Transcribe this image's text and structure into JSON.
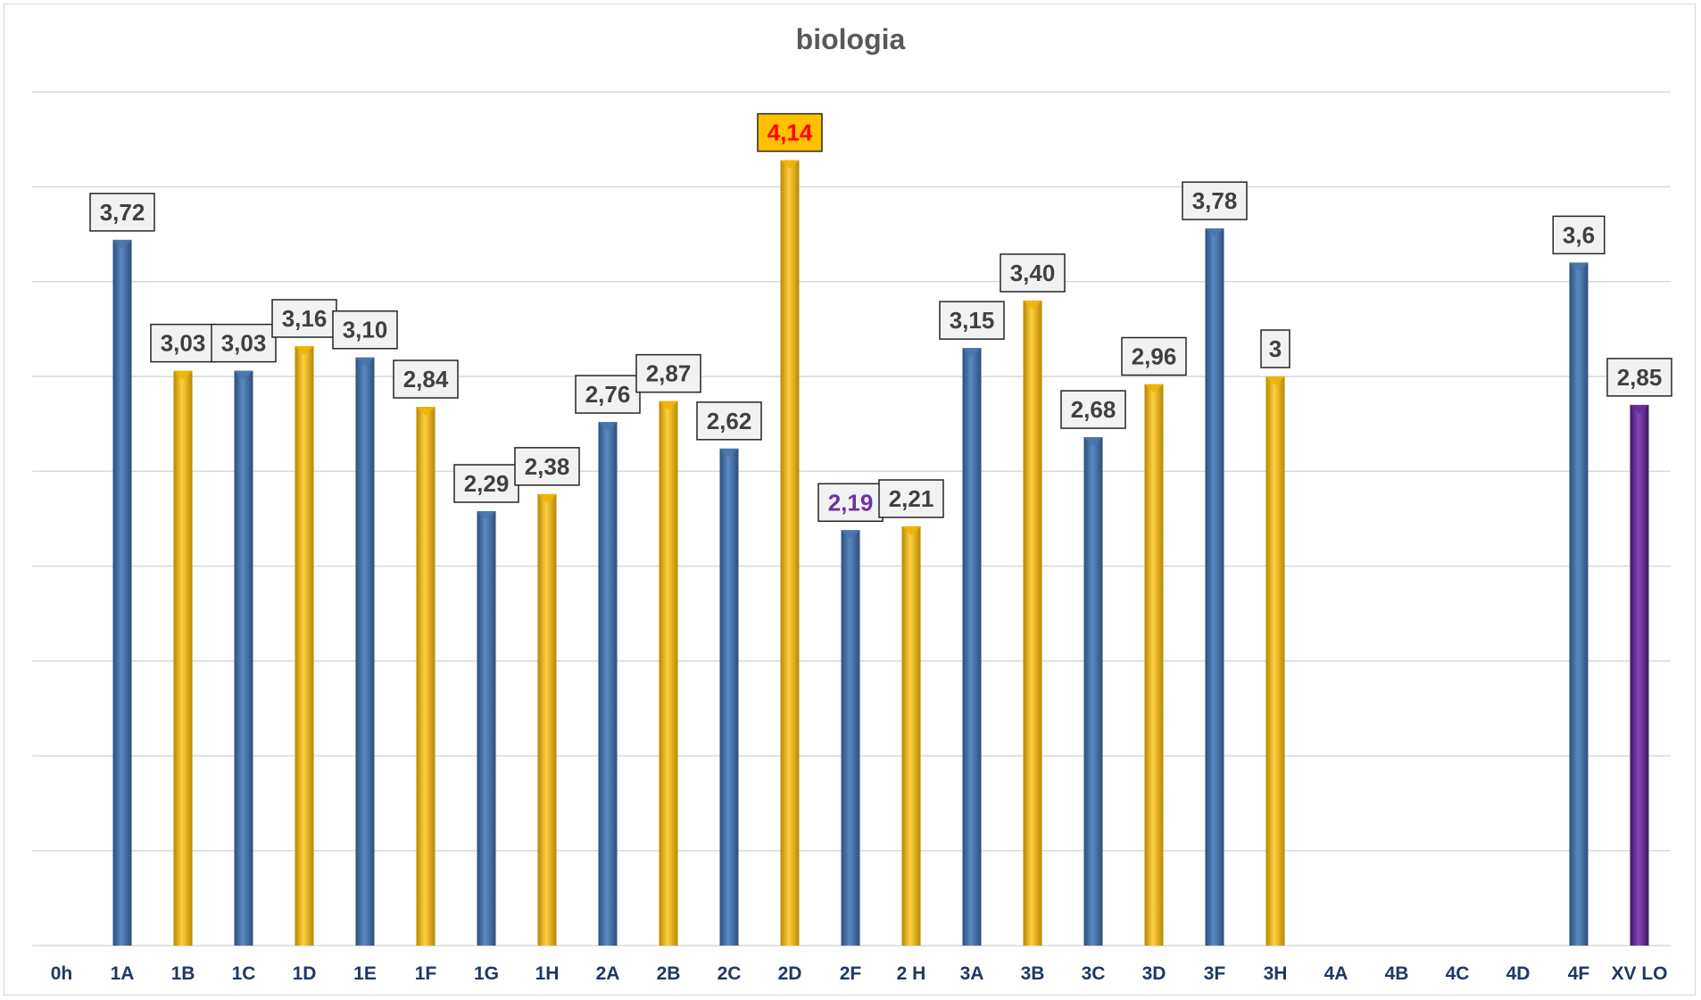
{
  "chart_data": {
    "type": "bar",
    "title": "biologia",
    "xlabel": "",
    "ylabel": "",
    "ylim": [
      0,
      4.5
    ],
    "grid": true,
    "legend": "none",
    "categories": [
      "0h",
      "1A",
      "1B",
      "1C",
      "1D",
      "1E",
      "1F",
      "1G",
      "1H",
      "2A",
      "2B",
      "2C",
      "2D",
      "2F",
      "2 H",
      "3A",
      "3B",
      "3C",
      "3D",
      "3F",
      "3H",
      "4A",
      "4B",
      "4C",
      "4D",
      "4F",
      "XV LO"
    ],
    "values": [
      null,
      3.72,
      3.03,
      3.03,
      3.16,
      3.1,
      2.84,
      2.29,
      2.38,
      2.76,
      2.87,
      2.62,
      4.14,
      2.19,
      2.21,
      3.15,
      3.4,
      2.68,
      2.96,
      3.78,
      3,
      null,
      null,
      null,
      null,
      3.6,
      2.85
    ],
    "data_labels": [
      "",
      "3,72",
      "3,03",
      "3,03",
      "3,16",
      "3,10",
      "2,84",
      "2,29",
      "2,38",
      "2,76",
      "2,87",
      "2,62",
      "4,14",
      "2,19",
      "2,21",
      "3,15",
      "3,40",
      "2,68",
      "2,96",
      "3,78",
      "3",
      "",
      "",
      "",
      "",
      "3,6",
      "2,85"
    ],
    "bar_colors": [
      "blue",
      "blue",
      "gold",
      "blue",
      "gold",
      "blue",
      "gold",
      "blue",
      "gold",
      "blue",
      "gold",
      "blue",
      "gold",
      "blue",
      "gold",
      "blue",
      "gold",
      "blue",
      "gold",
      "blue",
      "gold",
      "blue",
      "blue",
      "blue",
      "blue",
      "blue",
      "purple"
    ],
    "highlight": {
      "max_index": 12,
      "min_index": 13
    },
    "colors": {
      "blue": "#4a76ad",
      "gold": "#f0b400",
      "purple": "#6a2c91",
      "axis_label": "#1f3864",
      "label_text": "#404040",
      "max_label_bg": "#ffc000",
      "max_label_text": "#ff0000",
      "min_label_text": "#7030a0",
      "gridline": "#d9d9d9"
    }
  }
}
